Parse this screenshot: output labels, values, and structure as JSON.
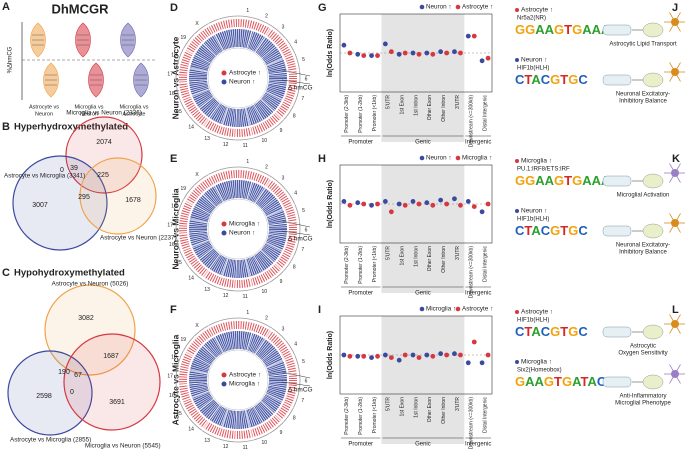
{
  "panels": {
    "A": {
      "label": "A",
      "title": "DhMCGR",
      "y_axis": "%ΔhmCG",
      "categories": [
        [
          "Astrocyte vs",
          "Neuron"
        ],
        [
          "Microglia vs",
          "Neuron"
        ],
        [
          "Microglia vs",
          "Astrocyte"
        ]
      ]
    },
    "B": {
      "label": "B",
      "title": "Hyperhydroxymethylated",
      "sets": [
        "Microglia vs Neuron (2336)",
        "Astrocyte vs Microglia (3341)",
        "Astrocyte vs Neuron (2237)"
      ],
      "counts": [
        2074,
        3007,
        1678,
        0,
        39,
        225,
        295
      ]
    },
    "C": {
      "label": "C",
      "title": "Hypohydroxymethylated",
      "sets": [
        "Astrocyte vs Neuron (5026)",
        "Astrocyte vs Microglia (2855)",
        "Microglia vs Neuron (5545)"
      ],
      "counts": [
        3082,
        1687,
        190,
        67,
        0,
        2598,
        3691
      ]
    },
    "circos": {
      "chromosomes": [
        "1",
        "2",
        "3",
        "4",
        "5",
        "6",
        "7",
        "8",
        "9",
        "10",
        "11",
        "12",
        "13",
        "14",
        "15",
        "16",
        "17",
        "18",
        "19",
        "X"
      ],
      "track_label": "Δ hmCG",
      "rows": [
        {
          "label": "D",
          "title": "Neuron vs Astrocyte",
          "legend": [
            "Astrocyte ↑",
            "Neuron ↑"
          ]
        },
        {
          "label": "E",
          "title": "Neuron vs Microglia",
          "legend": [
            "Microglia ↑",
            "Neuron ↑"
          ]
        },
        {
          "label": "F",
          "title": "Astrocyte vs Microglia",
          "legend": [
            "Astrocyte ↑",
            "Microglia ↑"
          ]
        }
      ]
    },
    "odds": {
      "y_axis": "ln(Odds Ratio)",
      "categories": [
        "Promoter (2-3kb)",
        "Promoter (1-2kb)",
        "Promoter (<1kb)",
        "5'UTR",
        "1st Exon",
        "1st Intron",
        "Other Exon",
        "Other Intron",
        "3'UTR",
        "Downstream (<=300kb)",
        "Distal Intergenic"
      ],
      "groups": [
        "Promoter",
        "Genic",
        "Intergenic"
      ],
      "ylim": [
        -1.5,
        1.5
      ],
      "charts": [
        {
          "label": "G",
          "series": [
            {
              "name": "Neuron ↑",
              "color": "#3a4a9f",
              "values": [
                0.3,
                -0.05,
                -0.1,
                0.35,
                -0.05,
                0.0,
                0.0,
                0.05,
                0.05,
                0.65,
                -0.3
              ]
            },
            {
              "name": "Astrocyte ↑",
              "color": "#d7373f",
              "values": [
                0.0,
                -0.1,
                -0.1,
                0.05,
                0.0,
                -0.05,
                -0.05,
                0.0,
                0.0,
                0.65,
                -0.2
              ]
            }
          ]
        },
        {
          "label": "H",
          "series": [
            {
              "name": "Neuron ↑",
              "color": "#3a4a9f",
              "values": [
                0.1,
                0.05,
                -0.05,
                0.1,
                0.0,
                0.1,
                0.05,
                0.15,
                0.2,
                0.1,
                -0.3
              ]
            },
            {
              "name": "Microglia ↑",
              "color": "#d7373f",
              "values": [
                -0.05,
                0.0,
                0.0,
                -0.3,
                -0.05,
                0.0,
                -0.05,
                0.0,
                -0.05,
                -0.1,
                0.0
              ]
            }
          ]
        },
        {
          "label": "I",
          "series": [
            {
              "name": "Microglia ↑",
              "color": "#3a4a9f",
              "values": [
                0.0,
                -0.05,
                -0.1,
                0.0,
                -0.2,
                0.0,
                0.0,
                0.05,
                0.05,
                -0.3,
                -0.3
              ]
            },
            {
              "name": "Astrocyte ↑",
              "color": "#d7373f",
              "values": [
                -0.05,
                -0.05,
                -0.05,
                -0.1,
                0.0,
                -0.1,
                -0.05,
                0.0,
                0.0,
                0.5,
                0.0
              ]
            }
          ]
        }
      ]
    },
    "motifs": [
      {
        "label": "J",
        "entries": [
          {
            "cell": "Astrocyte ↑",
            "tf": "Nr5a2(NR)",
            "motif": "GGAAGTGAAAGT",
            "outcome": [
              "Astrocytic Lipid Transport"
            ]
          },
          {
            "cell": "Neuron ↑",
            "tf": "HIF1b(HLH)",
            "motif": "CTACGTGC",
            "outcome": [
              "Neuronal Excitatory-",
              "Inhibitory Balance"
            ]
          }
        ]
      },
      {
        "label": "K",
        "entries": [
          {
            "cell": "Microglia ↑",
            "tf": "PU.1:IRF8/ETS:IRF",
            "motif": "GGAAGTGAAA",
            "outcome": [
              "Microglial Activation"
            ]
          },
          {
            "cell": "Neuron ↑",
            "tf": "HIF1b(HLH)",
            "motif": "CTACGTGC",
            "outcome": [
              "Neuronal Excitatory-",
              "Inhibitory Balance"
            ]
          }
        ]
      },
      {
        "label": "L",
        "entries": [
          {
            "cell": "Astrocyte ↑",
            "tf": "HIF1b(HLH)",
            "motif": "CTACGTGC",
            "outcome": [
              "Astrocytic",
              "Oxygen Sensitivity"
            ]
          },
          {
            "cell": "Microglia ↑",
            "tf": "Six2(Homeobox)",
            "motif": "GAAGTGATAC",
            "outcome": [
              "Anti-Inflammatory",
              "Microglial Phenotype"
            ]
          }
        ]
      }
    ]
  }
}
